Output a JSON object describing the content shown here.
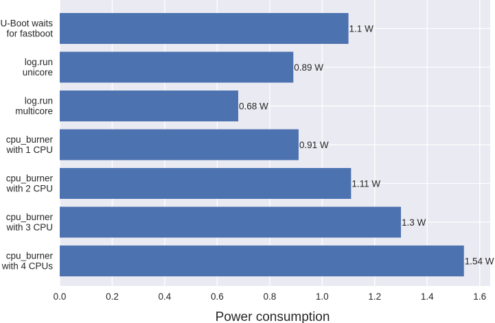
{
  "chart_data": {
    "type": "bar",
    "orientation": "horizontal",
    "title": "",
    "xlabel": "Power consumption",
    "ylabel": "",
    "xlim": [
      0,
      1.64
    ],
    "xticks": [
      "0.0",
      "0.2",
      "0.4",
      "0.6",
      "0.8",
      "1.0",
      "1.2",
      "1.4",
      "1.6"
    ],
    "grid": true,
    "colors": {
      "bar": "#4c72b0",
      "plot_bg": "#eaeaf2",
      "grid": "#ffffff",
      "text": "#262626"
    },
    "categories": [
      [
        "U-Boot waits",
        "for fastboot"
      ],
      [
        "log.run",
        "unicore"
      ],
      [
        "log.run",
        "multicore"
      ],
      [
        "cpu_burner",
        "with 1 CPU"
      ],
      [
        "cpu_burner",
        "with 2 CPU"
      ],
      [
        "cpu_burner",
        "with 3 CPU"
      ],
      [
        "cpu_burner",
        "with 4 CPUs"
      ]
    ],
    "values": [
      1.1,
      0.89,
      0.68,
      0.91,
      1.11,
      1.3,
      1.54
    ],
    "value_labels": [
      "1.1 W",
      "0.89 W",
      "0.68 W",
      "0.91 W",
      "1.11 W",
      "1.3 W",
      "1.54 W"
    ]
  }
}
